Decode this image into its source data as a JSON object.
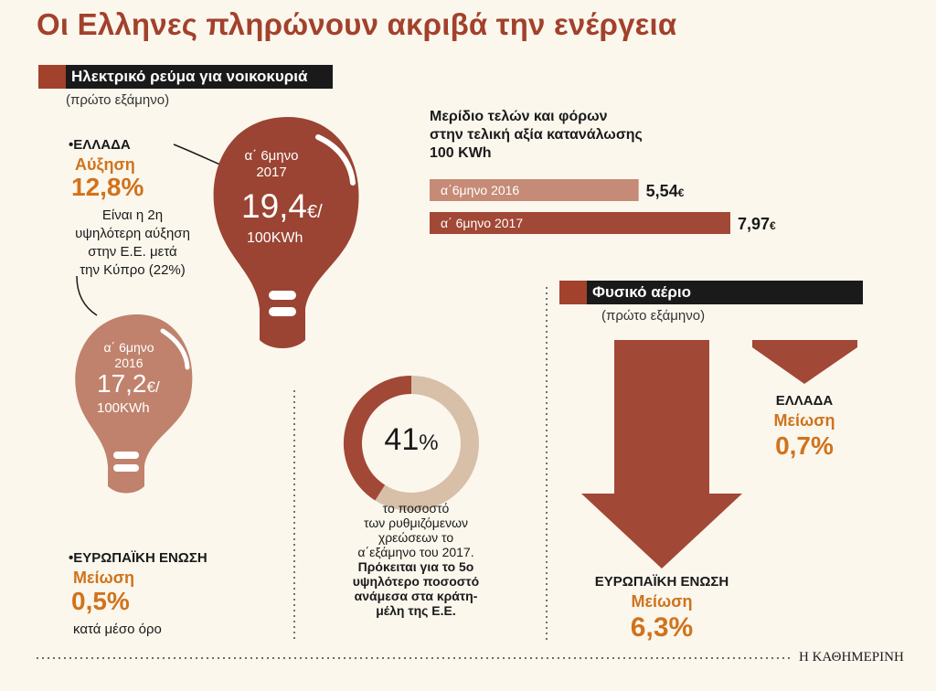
{
  "title": "Οι Ελληνες πληρώνουν ακριβά την ενέργεια",
  "electricity": {
    "header": "Ηλεκτρικό ρεύμα για νοικοκυριά",
    "period": "(πρώτο εξάμηνο)",
    "greece": {
      "label": "•ΕΛΛΑΔΑ",
      "change_word": "Αύξηση",
      "change_value": "12,8%",
      "note_lines": [
        "Είναι η 2η",
        "υψηλότερη αύξηση",
        "στην Ε.Ε. μετά",
        "την Κύπρο (22%)"
      ]
    },
    "bulb_2017": {
      "line1": "α΄ 6μηνο",
      "line2": "2017",
      "price": "19,4",
      "unit": "€/",
      "per": "100KWh"
    },
    "bulb_2016": {
      "line1": "α΄ 6μηνο",
      "line2": "2016",
      "price": "17,2",
      "unit": "€/",
      "per": "100KWh"
    },
    "eu": {
      "label": "•ΕΥΡΩΠΑΪΚΗ ΕΝΩΣΗ",
      "change_word": "Μείωση",
      "change_value": "0,5%",
      "note": "κατά μέσο όρο"
    }
  },
  "fees_share": {
    "title_lines": [
      "Μερίδιο τελών και φόρων",
      "στην τελική αξία κατανάλωσης",
      "100 KWh"
    ]
  },
  "regulated": {
    "percent_label": "41",
    "percent_sign": "%",
    "percent_value": 41,
    "text_lines": [
      "το ποσοστό",
      "των ρυθμιζόμενων",
      "χρεώσεων το",
      "α΄εξάμηνο του 2017.",
      "Πρόκειται για το 5ο",
      "υψηλότερο ποσοστό",
      "ανάμεσα στα κράτη-",
      "μέλη της Ε.Ε."
    ]
  },
  "gas": {
    "header": "Φυσικό αέριο",
    "period": "(πρώτο εξάμηνο)",
    "greece": {
      "label": "ΕΛΛΑΔΑ",
      "change_word": "Μείωση",
      "change_value": "0,7%"
    },
    "eu": {
      "label": "ΕΥΡΩΠΑΪΚΗ ΕΝΩΣΗ",
      "change_word": "Μείωση",
      "change_value": "6,3%"
    }
  },
  "source": "Η ΚΑΘΗΜΕΡΙΝΗ",
  "colors": {
    "brand": "#a2412c",
    "bulb_dark": "#9b4433",
    "bulb_light": "#c0826c",
    "bar_2016": "#c58b76",
    "bar_2017": "#a24836",
    "ring_bg": "#d7bfa8",
    "orange": "#d0731c",
    "header_bg": "#1a1a1a"
  },
  "chart_data": {
    "type": "bar",
    "orientation": "horizontal",
    "categories": [
      "α΄6μηνο 2016",
      "α΄ 6μηνο 2017"
    ],
    "values": [
      5.54,
      7.97
    ],
    "value_labels": [
      "5,54",
      "7,97"
    ],
    "unit": "€",
    "xlim": [
      0,
      8.6
    ]
  }
}
